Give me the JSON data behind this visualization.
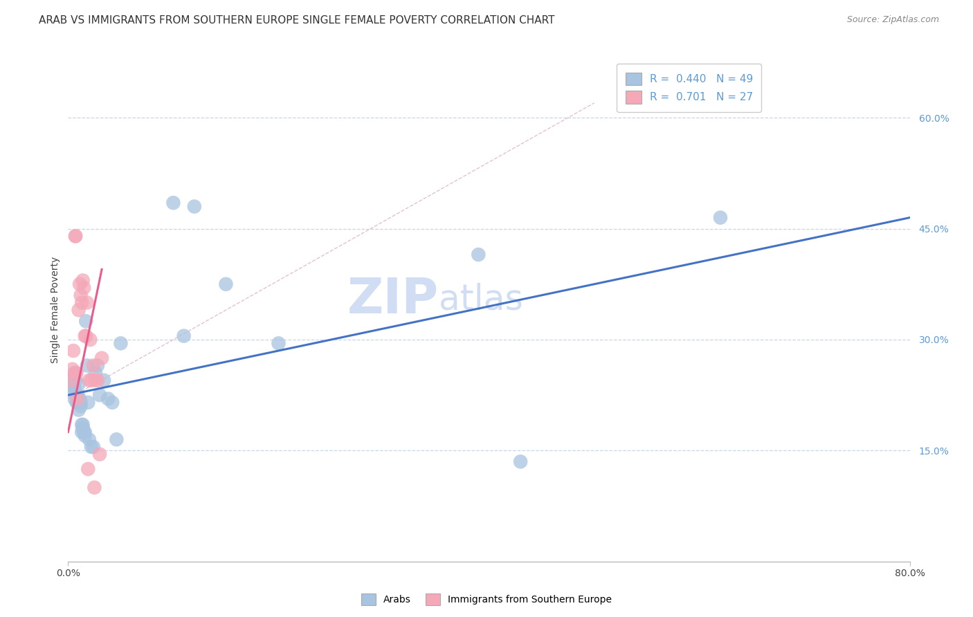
{
  "title": "ARAB VS IMMIGRANTS FROM SOUTHERN EUROPE SINGLE FEMALE POVERTY CORRELATION CHART",
  "source": "Source: ZipAtlas.com",
  "ylabel_label": "Single Female Poverty",
  "right_yticks": [
    "15.0%",
    "30.0%",
    "45.0%",
    "60.0%"
  ],
  "right_ytick_vals": [
    0.15,
    0.3,
    0.45,
    0.6
  ],
  "xlim": [
    0.0,
    0.8
  ],
  "ylim": [
    0.0,
    0.68
  ],
  "legend_arab": "R =  0.440   N = 49",
  "legend_immig": "R =  0.701   N = 27",
  "arab_color": "#a8c4e0",
  "immig_color": "#f4a8b8",
  "arab_line_color": "#4472c4",
  "immig_line_color": "#e85b8a",
  "watermark_zip": "ZIP",
  "watermark_atlas": "atlas",
  "grid_color": "#c8d4e8",
  "background_color": "#ffffff",
  "title_fontsize": 11,
  "source_fontsize": 9,
  "axis_label_fontsize": 10,
  "tick_fontsize": 10,
  "legend_fontsize": 11,
  "watermark_fontsize": 52,
  "arab_points_x": [
    0.002,
    0.003,
    0.004,
    0.005,
    0.005,
    0.006,
    0.006,
    0.007,
    0.007,
    0.008,
    0.008,
    0.009,
    0.009,
    0.009,
    0.01,
    0.01,
    0.011,
    0.011,
    0.012,
    0.012,
    0.013,
    0.013,
    0.014,
    0.014,
    0.015,
    0.016,
    0.016,
    0.017,
    0.018,
    0.019,
    0.02,
    0.022,
    0.024,
    0.026,
    0.028,
    0.03,
    0.034,
    0.038,
    0.042,
    0.046,
    0.05,
    0.1,
    0.11,
    0.12,
    0.15,
    0.2,
    0.39,
    0.43,
    0.62
  ],
  "arab_points_y": [
    0.245,
    0.235,
    0.24,
    0.235,
    0.25,
    0.235,
    0.22,
    0.245,
    0.255,
    0.225,
    0.215,
    0.225,
    0.22,
    0.215,
    0.24,
    0.205,
    0.22,
    0.215,
    0.215,
    0.21,
    0.175,
    0.185,
    0.185,
    0.18,
    0.175,
    0.17,
    0.175,
    0.325,
    0.265,
    0.215,
    0.165,
    0.155,
    0.155,
    0.255,
    0.265,
    0.225,
    0.245,
    0.22,
    0.215,
    0.165,
    0.295,
    0.485,
    0.305,
    0.48,
    0.375,
    0.295,
    0.415,
    0.135,
    0.465
  ],
  "immig_points_x": [
    0.003,
    0.004,
    0.005,
    0.006,
    0.007,
    0.007,
    0.008,
    0.009,
    0.01,
    0.011,
    0.012,
    0.013,
    0.014,
    0.015,
    0.016,
    0.017,
    0.018,
    0.019,
    0.02,
    0.021,
    0.022,
    0.024,
    0.025,
    0.026,
    0.028,
    0.03,
    0.032
  ],
  "immig_points_y": [
    0.245,
    0.26,
    0.285,
    0.255,
    0.44,
    0.44,
    0.255,
    0.22,
    0.34,
    0.375,
    0.36,
    0.35,
    0.38,
    0.37,
    0.305,
    0.305,
    0.35,
    0.125,
    0.245,
    0.3,
    0.245,
    0.265,
    0.1,
    0.245,
    0.245,
    0.145,
    0.275
  ],
  "arab_trendline_x": [
    0.0,
    0.8
  ],
  "arab_trendline_y": [
    0.225,
    0.465
  ],
  "immig_trendline_x": [
    0.0,
    0.032
  ],
  "immig_trendline_y": [
    0.175,
    0.395
  ],
  "dashed_line_x": [
    0.0,
    0.5
  ],
  "dashed_line_y": [
    0.22,
    0.62
  ],
  "bottom_legend_labels": [
    "Arabs",
    "Immigrants from Southern Europe"
  ]
}
